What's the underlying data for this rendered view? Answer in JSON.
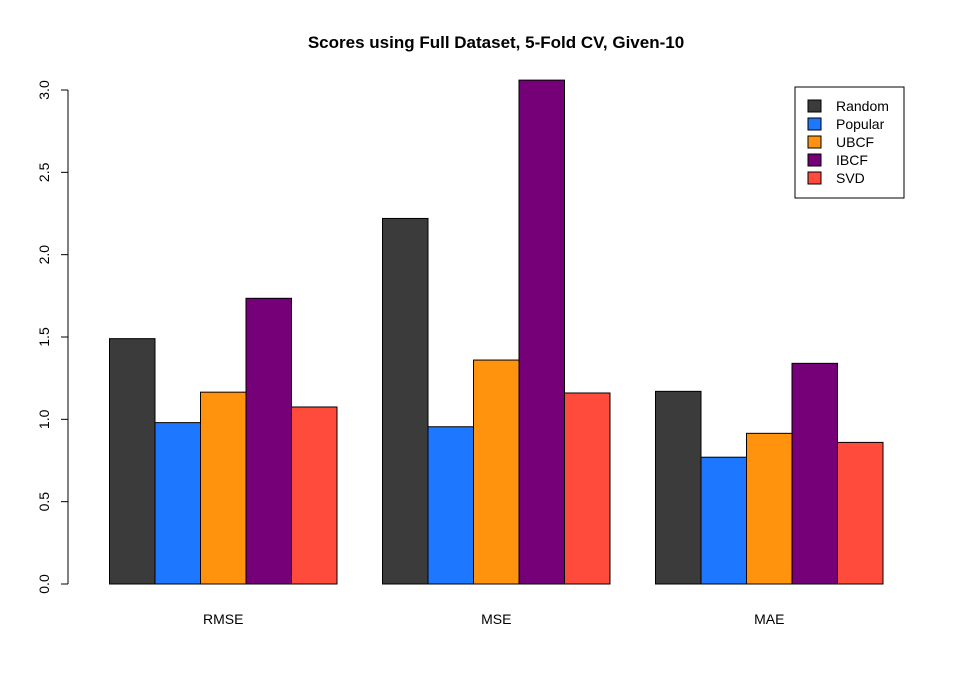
{
  "chart_data": {
    "type": "bar",
    "title": "Scores using Full Dataset, 5-Fold CV, Given-10",
    "xlabel": "",
    "ylabel": "",
    "ylim": [
      0,
      3.0
    ],
    "yticks": [
      "0.0",
      "0.5",
      "1.0",
      "1.5",
      "2.0",
      "2.5",
      "3.0"
    ],
    "categories": [
      "RMSE",
      "MSE",
      "MAE"
    ],
    "series": [
      {
        "name": "Random",
        "color": "#3b3b3b",
        "values": [
          1.49,
          2.22,
          1.17
        ]
      },
      {
        "name": "Popular",
        "color": "#1e78ff",
        "values": [
          0.98,
          0.955,
          0.77
        ]
      },
      {
        "name": "UBCF",
        "color": "#ff930e",
        "values": [
          1.165,
          1.36,
          0.915
        ]
      },
      {
        "name": "IBCF",
        "color": "#760077",
        "values": [
          1.735,
          3.06,
          1.34
        ]
      },
      {
        "name": "SVD",
        "color": "#ff4b3b",
        "values": [
          1.075,
          1.16,
          0.86
        ]
      }
    ],
    "legend_position": "top-right",
    "grid": false
  }
}
